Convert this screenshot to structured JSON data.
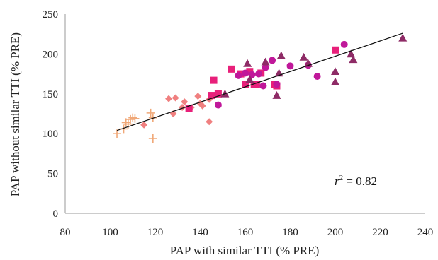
{
  "chart_data": {
    "type": "scatter",
    "xlabel": "PAP with similar TTI (% PRE)",
    "ylabel": "PAP without similar TTI (% PRE)",
    "xlim": [
      80,
      240
    ],
    "ylim": [
      0,
      250
    ],
    "x_ticks": [
      80,
      100,
      120,
      140,
      160,
      180,
      200,
      220,
      240
    ],
    "y_ticks": [
      0,
      50,
      100,
      150,
      200,
      250
    ],
    "grid": false,
    "legend": "none",
    "annotation": {
      "var": "r",
      "sup": "2",
      "rest": " = 0.82"
    },
    "trendline": {
      "x": [
        103,
        230
      ],
      "y": [
        104,
        226
      ],
      "color": "#111111"
    },
    "series": [
      {
        "marker": "plus",
        "color": "#F0A878",
        "points": [
          [
            103,
            100
          ],
          [
            106,
            106
          ],
          [
            107,
            114
          ],
          [
            108,
            112
          ],
          [
            109,
            118
          ],
          [
            110,
            120
          ],
          [
            111,
            119
          ],
          [
            118,
            126
          ],
          [
            119,
            120
          ],
          [
            119,
            94
          ]
        ]
      },
      {
        "marker": "diamond",
        "color": "#F08080",
        "points": [
          [
            115,
            111
          ],
          [
            126,
            144
          ],
          [
            128,
            125
          ],
          [
            129,
            145
          ],
          [
            132,
            133
          ],
          [
            133,
            140
          ],
          [
            136,
            133
          ],
          [
            139,
            147
          ],
          [
            140,
            138
          ],
          [
            141,
            135
          ],
          [
            144,
            115
          ],
          [
            144,
            143
          ]
        ]
      },
      {
        "marker": "square",
        "color": "#E8207A",
        "points": [
          [
            135,
            132
          ],
          [
            145,
            148
          ],
          [
            146,
            167
          ],
          [
            148,
            150
          ],
          [
            154,
            181
          ],
          [
            158,
            175
          ],
          [
            160,
            162
          ],
          [
            162,
            178
          ],
          [
            164,
            162
          ],
          [
            165,
            162
          ],
          [
            167,
            176
          ],
          [
            173,
            162
          ],
          [
            174,
            160
          ],
          [
            200,
            205
          ]
        ]
      },
      {
        "marker": "circle",
        "color": "#C0189A",
        "points": [
          [
            148,
            136
          ],
          [
            157,
            173
          ],
          [
            160,
            176
          ],
          [
            163,
            174
          ],
          [
            166,
            175
          ],
          [
            168,
            160
          ],
          [
            169,
            183
          ],
          [
            172,
            192
          ],
          [
            174,
            162
          ],
          [
            180,
            185
          ],
          [
            188,
            186
          ],
          [
            192,
            172
          ],
          [
            204,
            212
          ]
        ]
      },
      {
        "marker": "triangle",
        "color": "#8E2B66",
        "points": [
          [
            151,
            150
          ],
          [
            161,
            188
          ],
          [
            162,
            168
          ],
          [
            169,
            190
          ],
          [
            174,
            148
          ],
          [
            175,
            176
          ],
          [
            176,
            198
          ],
          [
            186,
            196
          ],
          [
            188,
            188
          ],
          [
            200,
            165
          ],
          [
            200,
            178
          ],
          [
            207,
            200
          ],
          [
            208,
            193
          ],
          [
            230,
            220
          ]
        ]
      }
    ]
  }
}
